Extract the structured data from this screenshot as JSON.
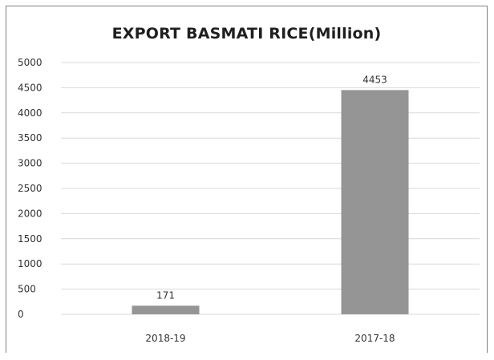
{
  "chart_data": {
    "type": "bar",
    "title": "EXPORT BASMATI RICE(Million)",
    "categories": [
      "2018-19",
      "2017-18"
    ],
    "values": [
      171,
      4453
    ],
    "data_labels": [
      "171",
      "4453"
    ],
    "y_tick_labels": [
      "0",
      "500",
      "1000",
      "1500",
      "2000",
      "2500",
      "3000",
      "3500",
      "4000",
      "4500",
      "5000"
    ],
    "ylim": [
      0,
      5000
    ],
    "xlabel": "",
    "ylabel": "",
    "grid": true,
    "legend": "none",
    "bar_color": "#959595",
    "grid_color": "#d9d9d9"
  }
}
